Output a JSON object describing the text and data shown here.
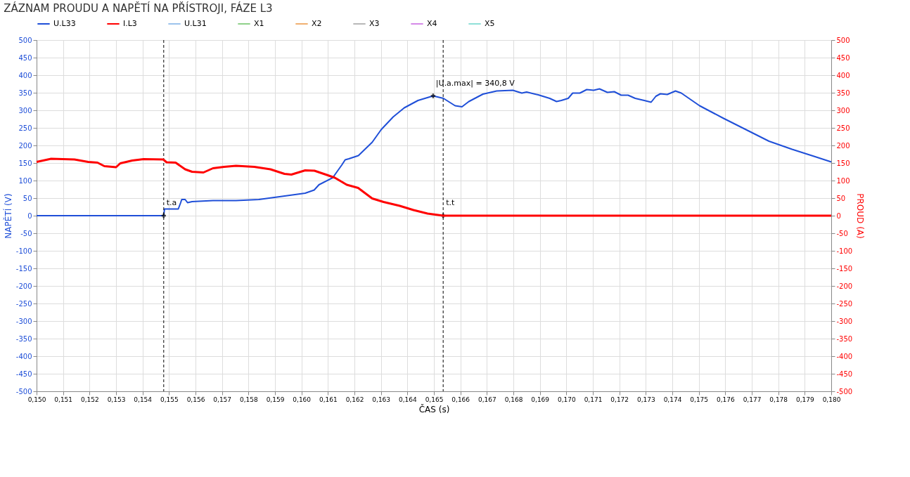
{
  "chart_data": {
    "type": "line",
    "title": "ZÁZNAM PROUDU A NAPĚTÍ NA PŘÍSTROJI, FÁZE L3",
    "xlabel": "ČAS (s)",
    "ylabel": "NAPĚTÍ (V)",
    "y2label": "PROUD (A)",
    "xlim": [
      0.15,
      0.18
    ],
    "xticks": [
      {
        "value": 0.15,
        "label": "0,150"
      },
      {
        "value": 0.151,
        "label": "0,151"
      },
      {
        "value": 0.152,
        "label": "0,152"
      },
      {
        "value": 0.153,
        "label": "0,153"
      },
      {
        "value": 0.154,
        "label": "0,154"
      },
      {
        "value": 0.155,
        "label": "0,155"
      },
      {
        "value": 0.156,
        "label": "0,156"
      },
      {
        "value": 0.157,
        "label": "0,157"
      },
      {
        "value": 0.158,
        "label": "0,158"
      },
      {
        "value": 0.159,
        "label": "0,159"
      },
      {
        "value": 0.16,
        "label": "0,160"
      },
      {
        "value": 0.161,
        "label": "0,161"
      },
      {
        "value": 0.162,
        "label": "0,162"
      },
      {
        "value": 0.163,
        "label": "0,163"
      },
      {
        "value": 0.164,
        "label": "0,164"
      },
      {
        "value": 0.165,
        "label": "0,165"
      },
      {
        "value": 0.166,
        "label": "0,166"
      },
      {
        "value": 0.167,
        "label": "0,167"
      },
      {
        "value": 0.168,
        "label": "0,168"
      },
      {
        "value": 0.169,
        "label": "0,169"
      },
      {
        "value": 0.17,
        "label": "0,170"
      },
      {
        "value": 0.171,
        "label": "0,171"
      },
      {
        "value": 0.172,
        "label": "0,172"
      },
      {
        "value": 0.173,
        "label": "0,173"
      },
      {
        "value": 0.174,
        "label": "0,174"
      },
      {
        "value": 0.175,
        "label": "0,175"
      },
      {
        "value": 0.176,
        "label": "0,176"
      },
      {
        "value": 0.177,
        "label": "0,177"
      },
      {
        "value": 0.178,
        "label": "0,178"
      },
      {
        "value": 0.179,
        "label": "0,179"
      },
      {
        "value": 0.18,
        "label": "0,180"
      }
    ],
    "ylim": [
      -500,
      500
    ],
    "yticks": [
      -500,
      -450,
      -400,
      -350,
      -300,
      -250,
      -200,
      -150,
      -100,
      -50,
      0,
      50,
      100,
      150,
      200,
      250,
      300,
      350,
      400,
      450,
      500
    ],
    "y2lim": [
      -500,
      500
    ],
    "y2ticks": [
      -500,
      -450,
      -400,
      -350,
      -300,
      -250,
      -200,
      -150,
      -100,
      -50,
      0,
      50,
      100,
      150,
      200,
      250,
      300,
      350,
      400,
      450,
      500
    ],
    "grid": true,
    "legend": "top",
    "line_style": "solid",
    "marker": "none",
    "series": [
      {
        "name": "U.L33",
        "color": "#1f4fd8",
        "x": [
          0.15,
          0.1548,
          0.15483,
          0.15535,
          0.15544,
          0.15548,
          0.15561,
          0.1557,
          0.15587,
          0.15666,
          0.15753,
          0.15839,
          0.15927,
          0.16014,
          0.16048,
          0.16066,
          0.16118,
          0.16152,
          0.16165,
          0.16179,
          0.16215,
          0.16267,
          0.16301,
          0.16346,
          0.16388,
          0.1644,
          0.16497,
          0.16536,
          0.1658,
          0.16606,
          0.16632,
          0.16685,
          0.16737,
          0.16798,
          0.16832,
          0.1685,
          0.16894,
          0.16937,
          0.16963,
          0.16981,
          0.17007,
          0.17024,
          0.17051,
          0.17077,
          0.17103,
          0.17125,
          0.17155,
          0.17181,
          0.17207,
          0.17233,
          0.1726,
          0.17294,
          0.1732,
          0.17338,
          0.17355,
          0.17381,
          0.17412,
          0.17434,
          0.17503,
          0.17591,
          0.17678,
          0.17765,
          0.17852,
          0.17939,
          0.18
        ],
        "values": [
          0,
          0,
          19,
          19,
          37,
          46,
          46,
          37,
          40,
          43,
          43,
          46,
          55,
          64,
          73,
          88,
          108,
          144,
          159,
          162,
          171,
          209,
          245,
          281,
          307,
          328,
          341,
          334,
          313,
          310,
          325,
          346,
          355,
          357,
          349,
          352,
          344,
          334,
          325,
          328,
          334,
          349,
          349,
          359,
          357,
          361,
          351,
          353,
          343,
          343,
          334,
          328,
          323,
          340,
          347,
          345,
          355,
          349,
          313,
          278,
          245,
          212,
          189,
          168,
          153
        ]
      },
      {
        "name": "I.L3",
        "color": "#ff0000",
        "axis": "y2",
        "x": [
          0.15,
          0.15055,
          0.15143,
          0.15195,
          0.1523,
          0.15256,
          0.153,
          0.15316,
          0.15361,
          0.15404,
          0.15478,
          0.15491,
          0.15525,
          0.15561,
          0.15587,
          0.1563,
          0.15666,
          0.15708,
          0.15753,
          0.15822,
          0.15883,
          0.15936,
          0.15962,
          0.15988,
          0.16014,
          0.16049,
          0.16092,
          0.16126,
          0.16171,
          0.16214,
          0.16267,
          0.1631,
          0.16371,
          0.16423,
          0.16476,
          0.16535,
          0.18
        ],
        "values": [
          153,
          162,
          160,
          153,
          151,
          141,
          138,
          149,
          157,
          161,
          160,
          152,
          151,
          132,
          125,
          123,
          135,
          139,
          142,
          139,
          132,
          119,
          117,
          123,
          129,
          128,
          117,
          108,
          88,
          79,
          49,
          39,
          28,
          16,
          6,
          0,
          0
        ]
      },
      {
        "name": "U.L31",
        "color": "#9cc3ec"
      },
      {
        "name": "X1",
        "color": "#8fd18a"
      },
      {
        "name": "X2",
        "color": "#f0b070"
      },
      {
        "name": "X3",
        "color": "#b8b8b8"
      },
      {
        "name": "X4",
        "color": "#d58ae8"
      },
      {
        "name": "X5",
        "color": "#8fe0d8"
      }
    ],
    "ref_lines": [
      {
        "axis": "x",
        "value": 0.1548,
        "color": "#000000",
        "line_style": "dashed"
      },
      {
        "axis": "x",
        "value": 0.16535,
        "color": "#000000",
        "line_style": "dashed"
      }
    ],
    "annotations": [
      {
        "text": "|U.a.max| = 340,8 V",
        "x": 0.16497,
        "y": 341
      },
      {
        "text": "t.a",
        "x": 0.1548,
        "y": 0
      },
      {
        "text": "t.t",
        "x": 0.16535,
        "y": 0
      }
    ]
  }
}
